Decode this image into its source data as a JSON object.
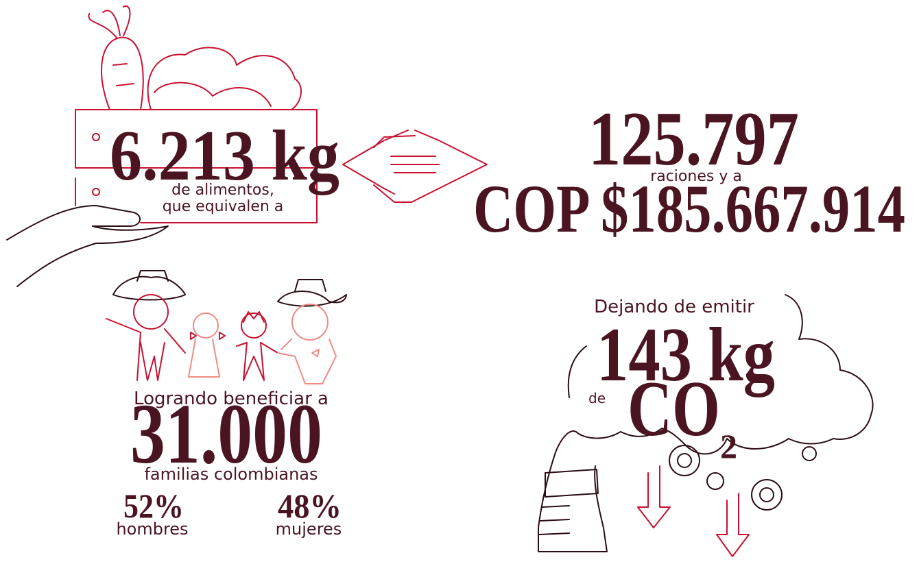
{
  "food": {
    "amount": "6.213 kg",
    "desc_line1": "de alimentos,",
    "desc_line2": "que equivalen a"
  },
  "rations": {
    "amount": "125.797",
    "connector": "raciones y a",
    "value": "COP $185.667.914"
  },
  "families": {
    "intro": "Logrando beneficiar a",
    "amount": "31.000",
    "desc": "familias colombianas",
    "men": {
      "percent": "52%",
      "label": "hombres"
    },
    "women": {
      "percent": "48%",
      "label": "mujeres"
    }
  },
  "emissions": {
    "intro": "Dejando de emitir",
    "amount": "143 kg",
    "of": "de",
    "gas": "CO",
    "subscript": "2"
  }
}
